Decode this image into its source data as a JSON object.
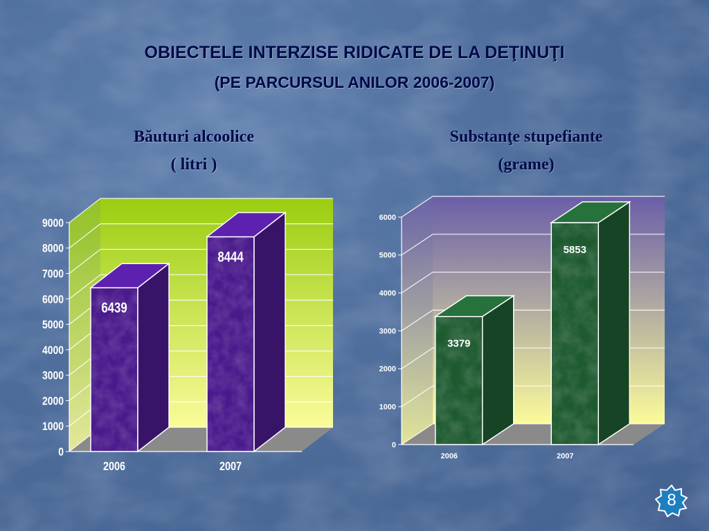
{
  "slide": {
    "title": "OBIECTELE INTERZISE RIDICATE DE LA DEŢINUŢI",
    "subtitle": "(PE PARCURSUL ANILOR  2006-2007)",
    "page_number": "8"
  },
  "charts": {
    "left": {
      "heading": "Băuturi alcoolice",
      "unit": "( litri )"
    },
    "right": {
      "heading": "Substanţe stupefiante",
      "unit": "(grame)"
    }
  },
  "chart_data": [
    {
      "type": "bar",
      "title": "Băuturi alcoolice",
      "subtitle": "( litri )",
      "categories": [
        "2006",
        "2007"
      ],
      "values": [
        6439,
        8444
      ],
      "data_labels": [
        "6439",
        "8444"
      ],
      "ylim": [
        0,
        9000
      ],
      "y_ticks": [
        0,
        1000,
        2000,
        3000,
        4000,
        5000,
        6000,
        7000,
        8000,
        9000
      ],
      "grid": true,
      "legend": "none",
      "style": "3d",
      "bar_color": "#4a1a8c",
      "wall_color_top": "#9acd10",
      "wall_color_bottom": "#fbfb9a"
    },
    {
      "type": "bar",
      "title": "Substanţe stupefiante",
      "subtitle": "(grame)",
      "categories": [
        "2006",
        "2007"
      ],
      "values": [
        3379,
        5853
      ],
      "data_labels": [
        "3379",
        "5853"
      ],
      "ylim": [
        0,
        6000
      ],
      "y_ticks": [
        0,
        1000,
        2000,
        3000,
        4000,
        5000,
        6000
      ],
      "grid": true,
      "legend": "none",
      "style": "3d",
      "bar_color": "#1e5a30",
      "wall_color_top": "#6a5ea8",
      "wall_color_bottom": "#fbfb9a"
    }
  ]
}
